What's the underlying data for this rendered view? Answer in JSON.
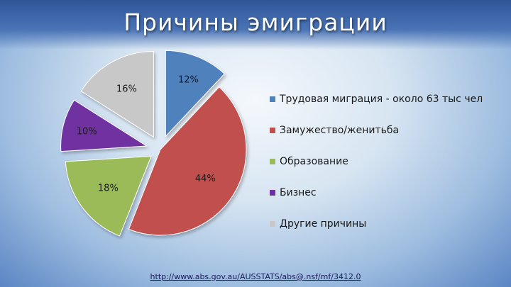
{
  "title": "Причины эмиграции",
  "source_link": "http://www.abs.gov.au/AUSSTATS/abs@.nsf/mf/3412.0",
  "chart_data": {
    "type": "pie",
    "title": "Причины эмиграции",
    "legend_position": "right",
    "exploded": true,
    "categories": [
      "Трудовая миграция - около 63 тыс чел",
      "Замужество/женитьба",
      "Образование",
      "Бизнес",
      "Другие причины"
    ],
    "values": [
      12,
      44,
      18,
      10,
      16
    ],
    "labels": [
      "12%",
      "44%",
      "18%",
      "10%",
      "16%"
    ],
    "colors": [
      "#4f81bd",
      "#c0504d",
      "#9bbb59",
      "#7030a0",
      "#c8c8c8"
    ]
  }
}
